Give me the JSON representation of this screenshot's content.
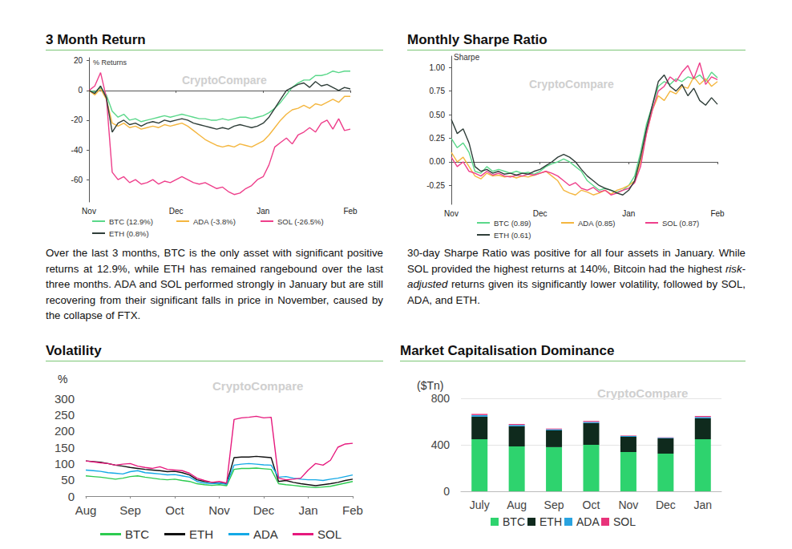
{
  "chart_data": [
    {
      "type": "line",
      "title": "3 Month Return",
      "caption": [
        "Over the last 3 months, BTC is the only asset with significant positive returns at 12.9%, while ETH has remained rangebound over the last three months. ADA and SOL performed strongly in January but are still recovering from their significant falls in price in November, caused by the collapse of FTX."
      ],
      "watermark": "CryptoCompare",
      "ylabel": "% Returns",
      "categories": [
        "Nov",
        null,
        null,
        null,
        null,
        null,
        null,
        null,
        null,
        null,
        null,
        null,
        null,
        null,
        null,
        "Dec",
        null,
        null,
        null,
        null,
        null,
        null,
        null,
        null,
        null,
        null,
        null,
        null,
        null,
        null,
        "Jan",
        null,
        null,
        null,
        null,
        null,
        null,
        null,
        null,
        null,
        null,
        null,
        null,
        null,
        null,
        "Feb"
      ],
      "series": [
        {
          "name": "BTC (12.9%)",
          "color": "#5ad88a",
          "values": [
            0,
            -1,
            2,
            -3,
            -14,
            -18,
            -16,
            -20,
            -19,
            -21,
            -20,
            -19,
            -18,
            -17,
            -18,
            -17,
            -16,
            -17,
            -18,
            -19,
            -19,
            -20,
            -20,
            -19,
            -20,
            -19,
            -18,
            -18,
            -19,
            -18,
            -17,
            -15,
            -12,
            -8,
            -3,
            2,
            5,
            7,
            7,
            10,
            10,
            11,
            13,
            12,
            13,
            13
          ]
        },
        {
          "name": "ADA (-3.8%)",
          "color": "#f4b63f",
          "values": [
            0,
            -3,
            1,
            -6,
            -22,
            -24,
            -22,
            -25,
            -24,
            -26,
            -25,
            -24,
            -25,
            -23,
            -24,
            -23,
            -22,
            -24,
            -27,
            -30,
            -33,
            -35,
            -37,
            -38,
            -37,
            -38,
            -36,
            -37,
            -38,
            -36,
            -34,
            -30,
            -25,
            -20,
            -16,
            -13,
            -12,
            -10,
            -12,
            -9,
            -10,
            -8,
            -6,
            -8,
            -4,
            -4
          ]
        },
        {
          "name": "SOL (-26.5%)",
          "color": "#ee3f8b",
          "values": [
            0,
            3,
            12,
            -5,
            -55,
            -60,
            -58,
            -62,
            -60,
            -63,
            -62,
            -60,
            -63,
            -61,
            -62,
            -60,
            -58,
            -60,
            -62,
            -63,
            -62,
            -64,
            -66,
            -65,
            -68,
            -70,
            -69,
            -66,
            -64,
            -60,
            -58,
            -50,
            -38,
            -35,
            -32,
            -36,
            -30,
            -28,
            -25,
            -28,
            -22,
            -20,
            -26,
            -19,
            -27,
            -26
          ]
        },
        {
          "name": "ETH (0.8%)",
          "color": "#2f3e39",
          "values": [
            0,
            -2,
            3,
            -5,
            -28,
            -22,
            -20,
            -23,
            -22,
            -24,
            -22,
            -21,
            -22,
            -20,
            -21,
            -20,
            -19,
            -20,
            -22,
            -23,
            -24,
            -25,
            -26,
            -25,
            -26,
            -24,
            -23,
            -24,
            -25,
            -24,
            -22,
            -18,
            -12,
            -6,
            0,
            2,
            4,
            5,
            2,
            6,
            3,
            4,
            2,
            0,
            2,
            1
          ]
        }
      ],
      "ylim": [
        -75,
        22
      ],
      "yticks": [
        -60,
        -40,
        -20,
        0,
        20
      ],
      "grid": false,
      "legend": "bottom",
      "marker": "none"
    },
    {
      "type": "line",
      "title": "Monthly Sharpe Ratio",
      "caption": [
        "30-day Sharpe Ratio was positive for all four assets in January. While SOL provided the highest returns at 140%, Bitcoin had the highest ",
        "risk-adjusted",
        " returns given its significantly lower volatility, followed by SOL, ADA, and ETH."
      ],
      "watermark": "CryptoCompare",
      "ylabel": "Sharpe",
      "categories": [
        "Nov",
        null,
        null,
        null,
        null,
        null,
        null,
        null,
        null,
        null,
        null,
        null,
        null,
        null,
        null,
        "Dec",
        null,
        null,
        null,
        null,
        null,
        null,
        null,
        null,
        null,
        null,
        null,
        null,
        null,
        null,
        "Jan",
        null,
        null,
        null,
        null,
        null,
        null,
        null,
        null,
        null,
        null,
        null,
        null,
        null,
        null,
        "Feb"
      ],
      "series": [
        {
          "name": "BTC (0.89)",
          "color": "#5ad88a",
          "values": [
            0.25,
            0.15,
            0.2,
            0.1,
            -0.1,
            -0.12,
            -0.05,
            -0.1,
            -0.08,
            -0.1,
            -0.12,
            -0.1,
            -0.12,
            -0.11,
            -0.13,
            -0.1,
            -0.05,
            -0.02,
            0.0,
            0.03,
            0.0,
            -0.05,
            -0.1,
            -0.2,
            -0.25,
            -0.3,
            -0.28,
            -0.3,
            -0.32,
            -0.3,
            -0.25,
            -0.15,
            0.1,
            0.4,
            0.6,
            0.8,
            0.85,
            0.82,
            0.88,
            0.85,
            0.9,
            0.88,
            0.92,
            0.85,
            0.95,
            0.89
          ]
        },
        {
          "name": "ADA (0.85)",
          "color": "#f4b63f",
          "values": [
            0.1,
            0.0,
            0.05,
            -0.05,
            -0.15,
            -0.18,
            -0.12,
            -0.15,
            -0.14,
            -0.16,
            -0.15,
            -0.17,
            -0.15,
            -0.16,
            -0.14,
            -0.12,
            -0.1,
            -0.15,
            -0.2,
            -0.3,
            -0.33,
            -0.35,
            -0.3,
            -0.32,
            -0.35,
            -0.33,
            -0.3,
            -0.34,
            -0.3,
            -0.28,
            -0.25,
            -0.2,
            0.0,
            0.3,
            0.55,
            0.7,
            0.65,
            0.75,
            0.72,
            0.8,
            0.78,
            0.9,
            0.82,
            0.88,
            0.8,
            0.85
          ]
        },
        {
          "name": "SOL (0.87)",
          "color": "#ee3f8b",
          "values": [
            0.05,
            -0.05,
            0.0,
            -0.1,
            -0.12,
            -0.15,
            -0.1,
            -0.14,
            -0.12,
            -0.15,
            -0.16,
            -0.14,
            -0.15,
            -0.13,
            -0.14,
            -0.12,
            -0.1,
            -0.12,
            -0.15,
            -0.2,
            -0.25,
            -0.22,
            -0.28,
            -0.3,
            -0.27,
            -0.32,
            -0.3,
            -0.35,
            -0.33,
            -0.3,
            -0.28,
            -0.22,
            -0.05,
            0.3,
            0.55,
            0.75,
            0.8,
            0.9,
            0.85,
            0.95,
            1.02,
            0.88,
            1.05,
            0.82,
            0.9,
            0.87
          ]
        },
        {
          "name": "ETH (0.61)",
          "color": "#2f3e39",
          "values": [
            0.45,
            0.3,
            0.35,
            0.2,
            -0.05,
            -0.1,
            -0.08,
            -0.12,
            -0.1,
            -0.13,
            -0.12,
            -0.14,
            -0.12,
            -0.13,
            -0.1,
            -0.08,
            -0.04,
            0.0,
            0.05,
            0.08,
            0.05,
            0.0,
            -0.08,
            -0.15,
            -0.2,
            -0.25,
            -0.28,
            -0.3,
            -0.33,
            -0.35,
            -0.3,
            -0.2,
            0.05,
            0.35,
            0.6,
            0.85,
            0.92,
            0.8,
            0.75,
            0.82,
            0.7,
            0.78,
            0.65,
            0.6,
            0.68,
            0.61
          ]
        }
      ],
      "ylim": [
        -0.45,
        1.12
      ],
      "yticks": [
        -0.25,
        {
          "value": 0,
          "label": "0.00"
        },
        0.25,
        {
          "value": 0.5,
          "label": "0.50"
        },
        0.75,
        {
          "value": 1,
          "label": "1.00"
        }
      ],
      "grid": false,
      "legend": "bottom",
      "marker": "none"
    },
    {
      "type": "line",
      "title": "Volatility",
      "watermark": "CryptoCompare",
      "ylabel": "%",
      "categories": [
        "Aug",
        null,
        null,
        null,
        null,
        null,
        "Sep",
        null,
        null,
        null,
        null,
        null,
        "Oct",
        null,
        null,
        null,
        null,
        null,
        "Nov",
        null,
        null,
        null,
        null,
        null,
        "Dec",
        null,
        null,
        null,
        null,
        null,
        "Jan",
        null,
        null,
        null,
        null,
        null,
        "Feb"
      ],
      "series": [
        {
          "name": "BTC",
          "color": "#2ccb4f",
          "values": [
            62,
            60,
            58,
            55,
            52,
            55,
            60,
            62,
            58,
            55,
            52,
            50,
            52,
            48,
            45,
            38,
            35,
            33,
            35,
            32,
            82,
            85,
            85,
            86,
            84,
            82,
            38,
            35,
            33,
            30,
            28,
            26,
            28,
            30,
            35,
            40,
            45
          ]
        },
        {
          "name": "ETH",
          "color": "#111111",
          "values": [
            108,
            106,
            104,
            100,
            95,
            92,
            88,
            85,
            82,
            80,
            78,
            75,
            76,
            72,
            65,
            50,
            45,
            42,
            40,
            38,
            118,
            120,
            120,
            122,
            120,
            118,
            45,
            48,
            42,
            38,
            35,
            32,
            35,
            38,
            42,
            48,
            52
          ]
        },
        {
          "name": "ADA",
          "color": "#14a9e6",
          "values": [
            80,
            78,
            76,
            72,
            70,
            68,
            75,
            78,
            72,
            70,
            68,
            65,
            66,
            62,
            58,
            45,
            40,
            38,
            40,
            36,
            95,
            98,
            100,
            98,
            96,
            95,
            58,
            60,
            55,
            52,
            50,
            50,
            48,
            52,
            55,
            60,
            65
          ]
        },
        {
          "name": "SOL",
          "color": "#e6197d",
          "values": [
            108,
            105,
            102,
            100,
            95,
            98,
            100,
            92,
            88,
            85,
            90,
            82,
            80,
            78,
            70,
            55,
            48,
            42,
            45,
            40,
            235,
            240,
            242,
            245,
            240,
            242,
            55,
            50,
            52,
            55,
            80,
            100,
            95,
            110,
            150,
            160,
            162
          ]
        }
      ],
      "ylim": [
        0,
        300
      ],
      "yticks": [
        0,
        50,
        100,
        150,
        200,
        250,
        300
      ],
      "grid": false,
      "legend": "bottom",
      "marker": "none"
    },
    {
      "type": "bar",
      "title": "Market Capitalisation Dominance",
      "watermark": "CryptoCompare",
      "ylabel": "($Tn)",
      "categories": [
        "July",
        "Aug",
        "Sep",
        "Oct",
        "Nov",
        "Dec",
        "Jan"
      ],
      "series": [
        {
          "name": "BTC",
          "color": "#2ed36e",
          "values": [
            448,
            386,
            380,
            400,
            338,
            324,
            448
          ]
        },
        {
          "name": "ETH",
          "color": "#0f2a1d",
          "values": [
            194,
            173,
            144,
            187,
            131,
            131,
            180
          ]
        },
        {
          "name": "ADA",
          "color": "#29a3e0",
          "values": [
            14,
            12,
            10,
            10,
            7,
            6,
            11
          ]
        },
        {
          "name": "SOL",
          "color": "#e8337a",
          "values": [
            10,
            8,
            6,
            8,
            4,
            3,
            9
          ]
        }
      ],
      "ylim": [
        0,
        800
      ],
      "yticks": [
        0,
        400,
        800
      ],
      "grid": true,
      "stacked": true,
      "legend": "bottom"
    }
  ]
}
